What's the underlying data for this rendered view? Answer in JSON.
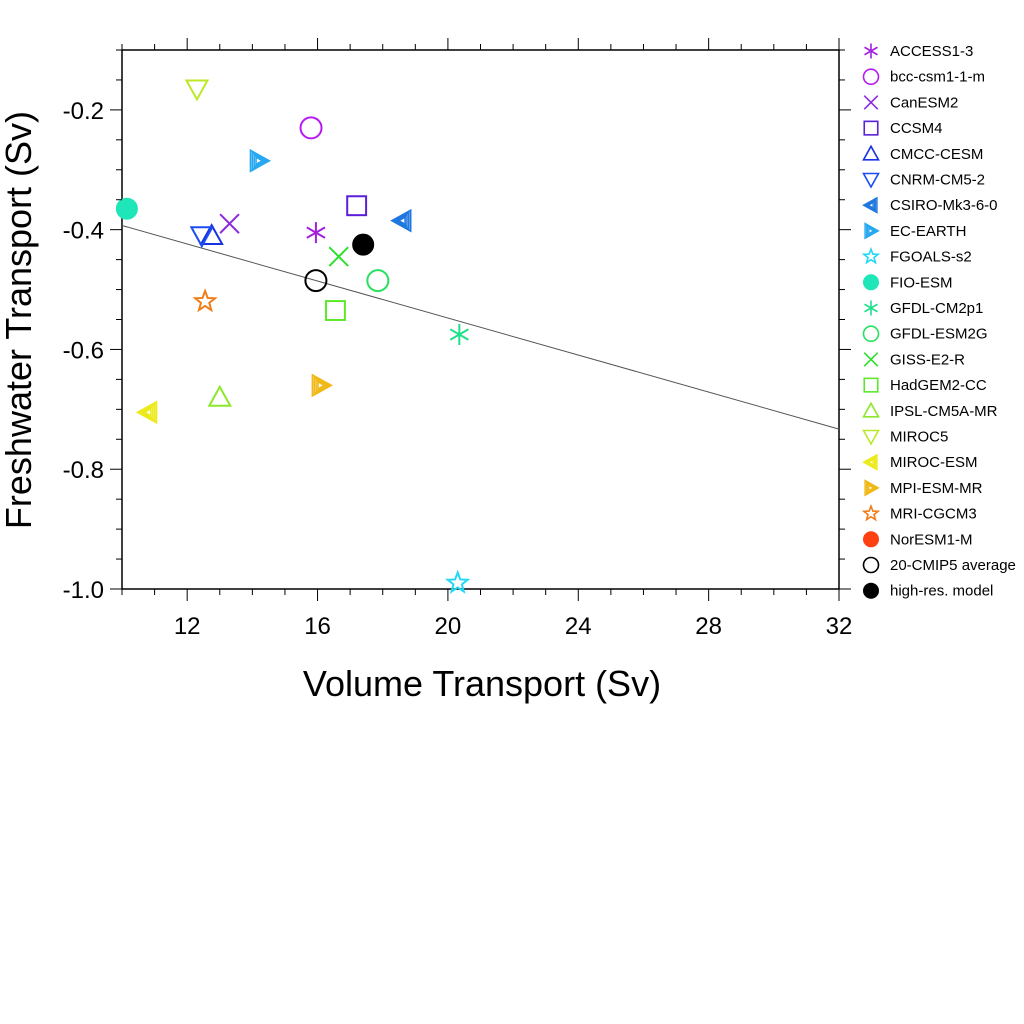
{
  "chart_data": {
    "type": "scatter",
    "xlabel": "Volume Transport (Sv)",
    "ylabel": "Freshwater Transport (Sv)",
    "xlim": [
      10,
      32
    ],
    "ylim": [
      -1.0,
      -0.1
    ],
    "xticks": [
      12,
      16,
      20,
      24,
      28,
      32
    ],
    "yticks": [
      -1.0,
      -0.8,
      -0.6,
      -0.4,
      -0.2
    ],
    "ytick_labels": [
      "-1.0",
      "-0.8",
      "-0.6",
      "-0.4",
      "-0.2"
    ],
    "grid": false,
    "legend_position": "right",
    "regression_line": {
      "x": [
        10,
        32
      ],
      "y": [
        -0.393,
        -0.733
      ],
      "color": "#555555"
    },
    "series": [
      {
        "name": "ACCESS1-3",
        "marker": "asterisk",
        "color": "#a31fe0",
        "x": 15.95,
        "y": -0.405
      },
      {
        "name": "bcc-csm1-1-m",
        "marker": "circle-open",
        "color": "#b61cf0",
        "x": 15.8,
        "y": -0.23
      },
      {
        "name": "CanESM2",
        "marker": "x",
        "color": "#8a2be2",
        "x": 13.3,
        "y": -0.39
      },
      {
        "name": "CCSM4",
        "marker": "square-open",
        "color": "#5a1fd6",
        "x": 17.2,
        "y": -0.36
      },
      {
        "name": "CMCC-CESM",
        "marker": "triangle-up-open",
        "color": "#1a33e0",
        "x": 12.75,
        "y": -0.41
      },
      {
        "name": "CNRM-CM5-2",
        "marker": "triangle-down-open",
        "color": "#1a4ef0",
        "x": 12.45,
        "y": -0.41
      },
      {
        "name": "CSIRO-Mk3-6-0",
        "marker": "triangle-left-hatched",
        "color": "#1e78e0",
        "x": 18.6,
        "y": -0.385
      },
      {
        "name": "EC-EARTH",
        "marker": "triangle-right-hatched",
        "color": "#28a8f0",
        "x": 14.2,
        "y": -0.285
      },
      {
        "name": "FGOALS-s2",
        "marker": "star-open",
        "color": "#22d8f5",
        "x": 20.3,
        "y": -0.99
      },
      {
        "name": "FIO-ESM",
        "marker": "circle-filled",
        "color": "#1ee6b8",
        "x": 10.15,
        "y": -0.365
      },
      {
        "name": "GFDL-CM2p1",
        "marker": "asterisk",
        "color": "#1ee08c",
        "x": 20.35,
        "y": -0.575
      },
      {
        "name": "GFDL-ESM2G",
        "marker": "circle-open",
        "color": "#28e060",
        "x": 17.85,
        "y": -0.485
      },
      {
        "name": "GISS-E2-R",
        "marker": "x",
        "color": "#2ee02e",
        "x": 16.65,
        "y": -0.445
      },
      {
        "name": "HadGEM2-CC",
        "marker": "square-open",
        "color": "#5ee82a",
        "x": 16.55,
        "y": -0.535
      },
      {
        "name": "IPSL-CM5A-MR",
        "marker": "triangle-up-open",
        "color": "#8ee82a",
        "x": 13.0,
        "y": -0.68
      },
      {
        "name": "MIROC5",
        "marker": "triangle-down-open",
        "color": "#bce82a",
        "x": 12.3,
        "y": -0.165
      },
      {
        "name": "MIROC-ESM",
        "marker": "triangle-left-hatched",
        "color": "#ecea18",
        "x": 10.8,
        "y": -0.705
      },
      {
        "name": "MPI-ESM-MR",
        "marker": "triangle-right-hatched",
        "color": "#f0b818",
        "x": 16.1,
        "y": -0.66
      },
      {
        "name": "MRI-CGCM3",
        "marker": "star-open",
        "color": "#f07e18",
        "x": 12.55,
        "y": -0.52
      },
      {
        "name": "NorESM1-M",
        "marker": "circle-filled",
        "color": "#ff4010",
        "x": null,
        "y": null
      },
      {
        "name": "20-CMIP5 average",
        "marker": "circle-open",
        "color": "#000000",
        "x": 15.95,
        "y": -0.485
      },
      {
        "name": "high-res. model",
        "marker": "circle-filled",
        "color": "#000000",
        "x": 17.4,
        "y": -0.425
      }
    ]
  }
}
